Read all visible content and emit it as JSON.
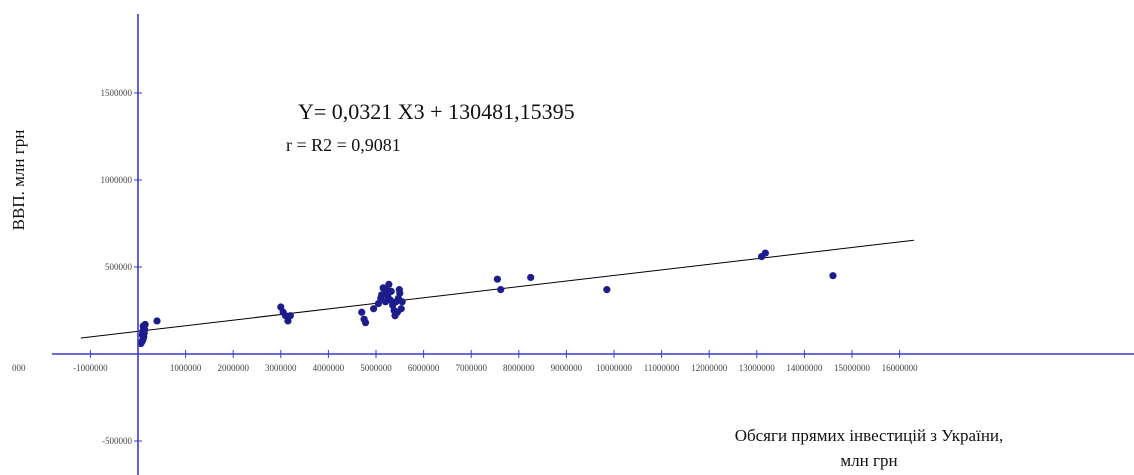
{
  "chart_data": {
    "type": "scatter",
    "equation": "Y= 0,0321 X3 +  130481,15395",
    "r_squared": "r = R2 = 0,9081",
    "xlabel_line1": "Обсяги прямих інвестицій з України,",
    "xlabel_line2": "млн грн",
    "ylabel": "ВВП. млн грн",
    "xlim": [
      -1400000,
      16300000
    ],
    "ylim": [
      -650000,
      1950000
    ],
    "x_ticks": [
      {
        "value": -1000000,
        "label": "-1000000"
      },
      {
        "value": 1000000,
        "label": "1000000"
      },
      {
        "value": 2000000,
        "label": "2000000"
      },
      {
        "value": 3000000,
        "label": "3000000"
      },
      {
        "value": 4000000,
        "label": "4000000"
      },
      {
        "value": 5000000,
        "label": "5000000"
      },
      {
        "value": 6000000,
        "label": "6000000"
      },
      {
        "value": 7000000,
        "label": "7000000"
      },
      {
        "value": 8000000,
        "label": "8000000"
      },
      {
        "value": 9000000,
        "label": "9000000"
      },
      {
        "value": 10000000,
        "label": "10000000"
      },
      {
        "value": 11000000,
        "label": "11000000"
      },
      {
        "value": 12000000,
        "label": "12000000"
      },
      {
        "value": 13000000,
        "label": "13000000"
      },
      {
        "value": 14000000,
        "label": "14000000"
      },
      {
        "value": 15000000,
        "label": "15000000"
      },
      {
        "value": 16000000,
        "label": "16000000"
      }
    ],
    "edge_tick_label": "000",
    "y_ticks": [
      {
        "value": 1500000,
        "label": "1500000"
      },
      {
        "value": 1000000,
        "label": "1000000"
      },
      {
        "value": 500000,
        "label": "500000"
      },
      {
        "value": -500000,
        "label": "-500000"
      }
    ],
    "trendline": {
      "slope": 0.0321,
      "intercept": 130481.15395
    },
    "points": [
      [
        60000,
        60000
      ],
      [
        80000,
        70000
      ],
      [
        100000,
        80000
      ],
      [
        110000,
        90000
      ],
      [
        120000,
        100000
      ],
      [
        90000,
        110000
      ],
      [
        130000,
        120000
      ],
      [
        100000,
        130000
      ],
      [
        140000,
        140000
      ],
      [
        120000,
        150000
      ],
      [
        110000,
        160000
      ],
      [
        150000,
        170000
      ],
      [
        400000,
        190000
      ],
      [
        3000000,
        270000
      ],
      [
        3050000,
        240000
      ],
      [
        3100000,
        220000
      ],
      [
        3150000,
        190000
      ],
      [
        3200000,
        220000
      ],
      [
        4700000,
        240000
      ],
      [
        4750000,
        200000
      ],
      [
        4780000,
        180000
      ],
      [
        4950000,
        260000
      ],
      [
        5050000,
        290000
      ],
      [
        5100000,
        320000
      ],
      [
        5120000,
        340000
      ],
      [
        5150000,
        380000
      ],
      [
        5180000,
        350000
      ],
      [
        5200000,
        300000
      ],
      [
        5220000,
        370000
      ],
      [
        5250000,
        330000
      ],
      [
        5270000,
        400000
      ],
      [
        5300000,
        310000
      ],
      [
        5320000,
        360000
      ],
      [
        5350000,
        280000
      ],
      [
        5380000,
        250000
      ],
      [
        5400000,
        220000
      ],
      [
        5420000,
        300000
      ],
      [
        5450000,
        240000
      ],
      [
        5470000,
        320000
      ],
      [
        5490000,
        370000
      ],
      [
        5500000,
        350000
      ],
      [
        5530000,
        260000
      ],
      [
        5550000,
        300000
      ],
      [
        7550000,
        430000
      ],
      [
        7620000,
        370000
      ],
      [
        8250000,
        440000
      ],
      [
        9850000,
        370000
      ],
      [
        13100000,
        560000
      ],
      [
        13180000,
        580000
      ],
      [
        14600000,
        450000
      ]
    ]
  },
  "colors": {
    "axis": "#3a3ad0",
    "point": "#1c1c8c",
    "trendline": "#000000",
    "tick_text": "#444444"
  }
}
